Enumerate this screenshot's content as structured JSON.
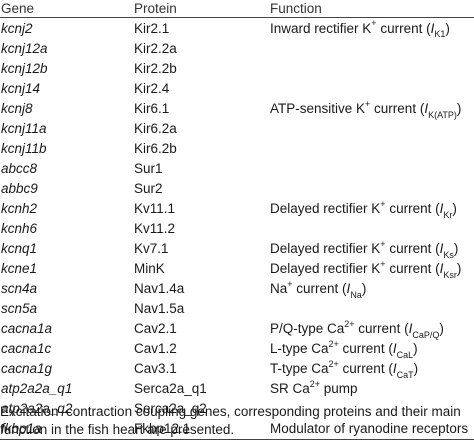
{
  "table": {
    "headers": {
      "gene": "Gene",
      "protein": "Protein",
      "function": "Function"
    },
    "rows": [
      {
        "gene": "kcnj2",
        "protein": "Kir2.1",
        "function": {
          "pre": "Inward rectifier K",
          "sup": "+",
          "mid": " current (",
          "sym": "I",
          "sub": "K1",
          "post": ")"
        }
      },
      {
        "gene": "kcnj12a",
        "protein": "Kir2.2a",
        "function": null
      },
      {
        "gene": "kcnj12b",
        "protein": "Kir2.2b",
        "function": null
      },
      {
        "gene": "kcnj14",
        "protein": "Kir2.4",
        "function": null
      },
      {
        "gene": "kcnj8",
        "protein": "Kir6.1",
        "function": {
          "pre": "ATP-sensitive K",
          "sup": "+",
          "mid": " current (",
          "sym": "I",
          "sub": "K(ATP)",
          "post": ")"
        }
      },
      {
        "gene": "kcnj11a",
        "protein": "Kir6.2a",
        "function": null
      },
      {
        "gene": "kcnj11b",
        "protein": "Kir6.2b",
        "function": null
      },
      {
        "gene": "abcc8",
        "protein": "Sur1",
        "function": null
      },
      {
        "gene": "abbc9",
        "protein": "Sur2",
        "function": null
      },
      {
        "gene": "kcnh2",
        "protein": "Kv11.1",
        "function": {
          "pre": "Delayed rectifier K",
          "sup": "+",
          "mid": " current (",
          "sym": "I",
          "sub": "Kr",
          "post": ")"
        }
      },
      {
        "gene": "kcnh6",
        "protein": "Kv11.2",
        "function": null
      },
      {
        "gene": "kcnq1",
        "protein": "Kv7.1",
        "function": {
          "pre": "Delayed rectifier K",
          "sup": "+",
          "mid": " current (",
          "sym": "I",
          "sub": "Ks",
          "post": ")"
        }
      },
      {
        "gene": "kcne1",
        "protein": "MinK",
        "function": {
          "pre": "Delayed rectifier K",
          "sup": "+",
          "mid": " current (",
          "sym": "I",
          "sub": "Ksr",
          "post": ")"
        }
      },
      {
        "gene": "scn4a",
        "protein": "Nav1.4a",
        "function": {
          "pre": "Na",
          "sup": "+",
          "mid": " current (",
          "sym": "I",
          "sub": "Na",
          "post": ")"
        }
      },
      {
        "gene": "scn5a",
        "protein": "Nav1.5a",
        "function": null
      },
      {
        "gene": "cacna1a",
        "protein": "Cav2.1",
        "function": {
          "pre": "P/Q-type Ca",
          "sup": "2+",
          "mid": " current (",
          "sym": "I",
          "sub": "CaP/Q",
          "post": ")"
        }
      },
      {
        "gene": "cacna1c",
        "protein": "Cav1.2",
        "function": {
          "pre": "L-type Ca",
          "sup": "2+",
          "mid": " current (",
          "sym": "I",
          "sub": "CaL",
          "post": ")"
        }
      },
      {
        "gene": "cacna1g",
        "protein": "Cav3.1",
        "function": {
          "pre": "T-type Ca",
          "sup": "2+",
          "mid": " current (",
          "sym": "I",
          "sub": "CaT",
          "post": ")"
        }
      },
      {
        "gene": "atp2a2a_q1",
        "protein": "Serca2a_q1",
        "function": {
          "pre": "SR Ca",
          "sup": "2+",
          "mid": " pump",
          "sym": "",
          "sub": "",
          "post": ""
        }
      },
      {
        "gene": "atp2a2a_q2",
        "protein": "Serca2a_q2",
        "function": null
      },
      {
        "gene": "fkbp1a",
        "protein": "Fkbp12.1",
        "function": {
          "pre": "Modulator of ryanodine receptors",
          "sup": "",
          "mid": "",
          "sym": "",
          "sub": "",
          "post": ""
        }
      }
    ]
  },
  "caption": {
    "line1": "Excitation–contraction coupling genes, corresponding proteins and their main",
    "line2": "function in the fish heart are presented."
  }
}
